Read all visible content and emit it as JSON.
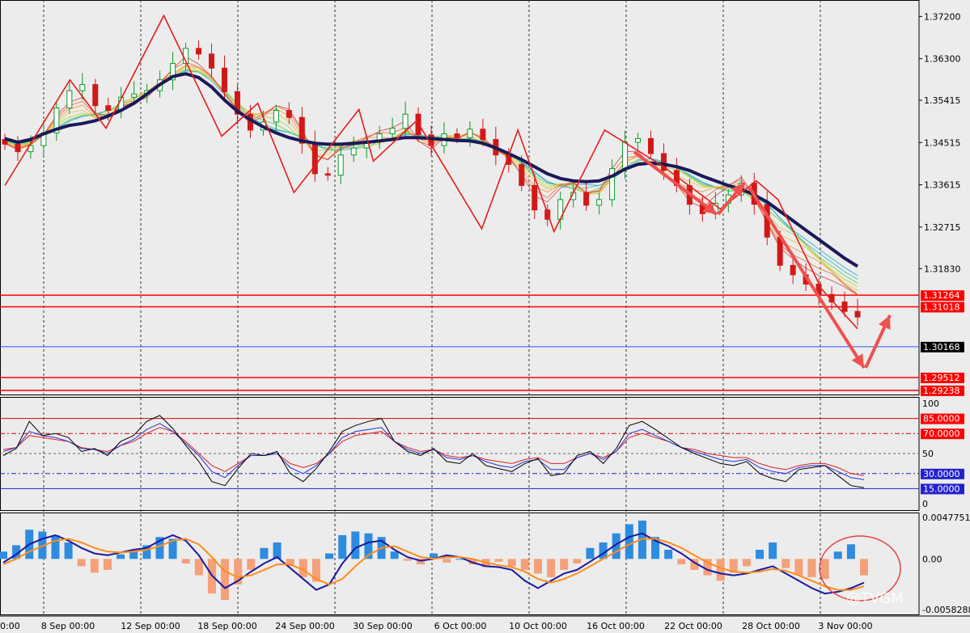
{
  "chart_data": [
    {
      "type": "candlestick",
      "panel": "price",
      "ylim": [
        1.2915,
        1.3755
      ],
      "x_ticks": [
        "8 Sep 00:00",
        "12 Sep 00:00",
        "18 Sep 00:00",
        "24 Sep 00:00",
        "30 Sep 00:00",
        "6 Oct 00:00",
        "10 Oct 00:00",
        "16 Oct 00:00",
        "22 Oct 00:00",
        "28 Oct 00:00",
        "3 Nov 00:00"
      ],
      "x_tick_left_fragment": "0:00",
      "y_ticks": [
        1.372,
        1.363,
        1.35415,
        1.34515,
        1.33615,
        1.32715,
        1.3183
      ],
      "y_tick_labels": [
        "1.37200",
        "1.36300",
        "1.35415",
        "1.34515",
        "1.33615",
        "1.32715",
        "1.31830"
      ],
      "close_series": [
        1.3448,
        1.3432,
        1.3445,
        1.3472,
        1.3525,
        1.3562,
        1.3575,
        1.353,
        1.352,
        1.3548,
        1.3555,
        1.3562,
        1.3585,
        1.362,
        1.3652,
        1.364,
        1.361,
        1.356,
        1.3512,
        1.3478,
        1.3495,
        1.352,
        1.3505,
        1.345,
        1.3385,
        1.3382,
        1.3425,
        1.344,
        1.3455,
        1.347,
        1.3482,
        1.3512,
        1.3468,
        1.3445,
        1.347,
        1.3462,
        1.348,
        1.3458,
        1.3425,
        1.3405,
        1.336,
        1.3308,
        1.3288,
        1.333,
        1.3345,
        1.3318,
        1.333,
        1.3396,
        1.3452,
        1.346,
        1.3428,
        1.3392,
        1.336,
        1.332,
        1.33,
        1.3322,
        1.334,
        1.3365,
        1.332,
        1.325,
        1.319,
        1.317,
        1.315,
        1.3128,
        1.3112,
        1.3092,
        1.308
      ],
      "ma_series": [
        1.346,
        1.3452,
        1.3458,
        1.347,
        1.348,
        1.3488,
        1.3492,
        1.3498,
        1.3508,
        1.352,
        1.3535,
        1.3555,
        1.3575,
        1.3592,
        1.3598,
        1.359,
        1.357,
        1.3542,
        1.3518,
        1.35,
        1.3485,
        1.3472,
        1.3462,
        1.3455,
        1.345,
        1.3448,
        1.3448,
        1.345,
        1.3452,
        1.3455,
        1.3458,
        1.3462,
        1.3462,
        1.346,
        1.3458,
        1.3456,
        1.3455,
        1.345,
        1.344,
        1.3428,
        1.3415,
        1.34,
        1.3385,
        1.3375,
        1.337,
        1.3368,
        1.337,
        1.338,
        1.3395,
        1.3405,
        1.3408,
        1.3405,
        1.34,
        1.3392,
        1.338,
        1.337,
        1.336,
        1.3352,
        1.334,
        1.3325,
        1.3305,
        1.3285,
        1.3265,
        1.3245,
        1.3225,
        1.3205,
        1.3188
      ],
      "zigzag": [
        [
          0,
          1.336
        ],
        [
          9,
          1.3585
        ],
        [
          14,
          1.3482
        ],
        [
          22,
          1.3722
        ],
        [
          30,
          1.3465
        ],
        [
          35,
          1.3535
        ],
        [
          40,
          1.3345
        ],
        [
          49,
          1.3522
        ],
        [
          51,
          1.3412
        ],
        [
          57,
          1.3498
        ],
        [
          66,
          1.3268
        ],
        [
          71,
          1.3478
        ],
        [
          76,
          1.3262
        ],
        [
          83,
          1.3478
        ],
        [
          91,
          1.3402
        ],
        [
          99,
          1.331
        ],
        [
          104,
          1.337
        ],
        [
          107,
          1.333
        ],
        [
          113,
          1.314
        ],
        [
          118,
          1.3055
        ]
      ],
      "horizontal_levels": [
        {
          "value": 1.31264,
          "label": "1.31264",
          "color": "#ff0000"
        },
        {
          "value": 1.31018,
          "label": "1.31018",
          "color": "#ff0000"
        },
        {
          "value": 1.30168,
          "label": "1.30168",
          "color": "#3355ee",
          "current": true
        },
        {
          "value": 1.29512,
          "label": "1.29512",
          "color": "#ff0000"
        },
        {
          "value": 1.29238,
          "label": "1.29238",
          "color": "#ff0000"
        }
      ],
      "colors": {
        "bull": "#0a9a2a",
        "bear": "#d11818",
        "ma": "#1a1a5a",
        "zigzag": "#e81c1c",
        "arrow": "#f05050"
      }
    },
    {
      "type": "line",
      "panel": "oscillator",
      "ylim": [
        0,
        100
      ],
      "y_ticks": [
        100,
        50,
        0
      ],
      "levels": [
        {
          "value": 85,
          "label": "85.0000",
          "color": "#dd0000"
        },
        {
          "value": 70,
          "label": "70.0000",
          "color": "#dd0000"
        },
        {
          "value": 30,
          "label": "30.0000",
          "color": "#2222cc"
        },
        {
          "value": 15,
          "label": "15.0000",
          "color": "#2222cc"
        }
      ],
      "series": [
        {
          "values": [
            48,
            55,
            82,
            68,
            70,
            66,
            52,
            55,
            48,
            62,
            68,
            82,
            88,
            75,
            58,
            42,
            22,
            18,
            35,
            50,
            48,
            52,
            30,
            22,
            35,
            52,
            72,
            78,
            82,
            85,
            62,
            52,
            48,
            55,
            42,
            40,
            50,
            38,
            35,
            32,
            40,
            45,
            28,
            30,
            48,
            52,
            40,
            55,
            78,
            82,
            74,
            65,
            56,
            50,
            45,
            40,
            38,
            42,
            30,
            25,
            22,
            34,
            36,
            38,
            28,
            18,
            16
          ],
          "color": "#000000"
        },
        {
          "values": [
            52,
            56,
            72,
            68,
            66,
            62,
            55,
            54,
            50,
            58,
            64,
            74,
            80,
            72,
            60,
            48,
            32,
            26,
            38,
            48,
            48,
            50,
            36,
            30,
            38,
            50,
            66,
            72,
            74,
            76,
            62,
            54,
            50,
            54,
            46,
            44,
            48,
            42,
            38,
            36,
            42,
            44,
            34,
            34,
            46,
            50,
            44,
            52,
            70,
            74,
            68,
            62,
            56,
            52,
            48,
            44,
            42,
            44,
            36,
            32,
            30,
            36,
            38,
            38,
            32,
            26,
            24
          ],
          "color": "#2233dd"
        },
        {
          "values": [
            54,
            56,
            68,
            66,
            64,
            62,
            56,
            54,
            52,
            58,
            62,
            70,
            76,
            72,
            62,
            50,
            38,
            32,
            40,
            48,
            48,
            50,
            40,
            36,
            40,
            50,
            62,
            68,
            70,
            72,
            62,
            56,
            52,
            54,
            48,
            46,
            48,
            44,
            42,
            40,
            44,
            46,
            40,
            40,
            46,
            50,
            46,
            52,
            66,
            70,
            66,
            62,
            56,
            54,
            50,
            48,
            46,
            46,
            40,
            36,
            34,
            38,
            40,
            40,
            36,
            30,
            28
          ],
          "color": "#dd2222"
        }
      ]
    },
    {
      "type": "bar+line",
      "panel": "macd",
      "ylim": [
        -0.0058288,
        0.0047751
      ],
      "y_ticks": [
        0.0047751,
        0.0,
        -0.0058288
      ],
      "y_tick_labels": [
        "0.0047751",
        "0.00",
        "-0.0058288"
      ],
      "histogram": [
        0.8,
        1.5,
        3.2,
        3.0,
        2.6,
        1.8,
        -0.8,
        -1.5,
        -1.2,
        0.5,
        0.8,
        1.5,
        2.4,
        2.2,
        -0.5,
        -1.8,
        -3.8,
        -4.5,
        -2.8,
        -1.2,
        1.2,
        1.8,
        -0.8,
        -2.0,
        -2.5,
        0.6,
        2.6,
        3.0,
        2.8,
        2.4,
        0.8,
        -0.2,
        -0.6,
        0.6,
        -0.4,
        0.0,
        -0.6,
        -0.9,
        -0.3,
        -0.8,
        -1.2,
        -1.6,
        -2.0,
        -1.2,
        -0.5,
        1.2,
        1.8,
        2.8,
        3.8,
        4.2,
        2.4,
        1.0,
        -0.6,
        -1.2,
        -1.8,
        -2.4,
        -1.5,
        -0.8,
        1.0,
        1.8,
        -1.0,
        -1.8,
        -2.0,
        -2.2,
        0.8,
        1.6,
        -1.8
      ],
      "series": [
        {
          "values": [
            -0.4,
            0.5,
            1.6,
            2.2,
            2.6,
            2.0,
            1.2,
            0.6,
            0.4,
            0.7,
            1.0,
            1.2,
            2.0,
            2.6,
            2.0,
            0.4,
            -1.8,
            -3.2,
            -2.4,
            -1.4,
            -0.5,
            0.2,
            -1.0,
            -2.2,
            -3.4,
            -2.8,
            -0.5,
            1.2,
            1.8,
            2.0,
            1.0,
            0.2,
            -0.2,
            0.0,
            0.4,
            0.2,
            -0.4,
            -0.8,
            -0.9,
            -1.2,
            -2.4,
            -3.2,
            -2.4,
            -1.6,
            -1.2,
            -0.3,
            0.6,
            1.6,
            2.4,
            2.8,
            2.0,
            1.4,
            0.6,
            -0.4,
            -1.2,
            -1.6,
            -1.8,
            -1.6,
            -1.2,
            -0.8,
            -1.6,
            -2.4,
            -3.2,
            -3.8,
            -3.6,
            -3.2,
            -2.6
          ],
          "color": "#1a1aa0"
        },
        {
          "values": [
            -0.6,
            0.0,
            0.8,
            1.4,
            2.0,
            2.2,
            1.8,
            1.2,
            0.8,
            0.7,
            0.8,
            1.0,
            1.4,
            2.0,
            2.2,
            1.6,
            0.2,
            -1.4,
            -2.0,
            -1.8,
            -1.2,
            -0.6,
            -0.6,
            -1.2,
            -2.2,
            -2.8,
            -2.2,
            -0.8,
            0.4,
            1.2,
            1.4,
            0.8,
            0.2,
            0.0,
            0.2,
            0.2,
            0.0,
            -0.4,
            -0.7,
            -0.9,
            -1.4,
            -2.2,
            -2.6,
            -2.2,
            -1.6,
            -0.8,
            0.0,
            0.8,
            1.6,
            2.2,
            2.2,
            1.8,
            1.2,
            0.4,
            -0.4,
            -1.0,
            -1.4,
            -1.5,
            -1.4,
            -1.1,
            -1.3,
            -1.8,
            -2.4,
            -3.0,
            -3.4,
            -3.4,
            -3.0
          ],
          "color": "#ff8c1a"
        }
      ],
      "colors": {
        "positive": "#2d8be0",
        "negative": "#f4a07a",
        "annotation": "#e84040"
      }
    }
  ],
  "watermark": "@TVGM"
}
